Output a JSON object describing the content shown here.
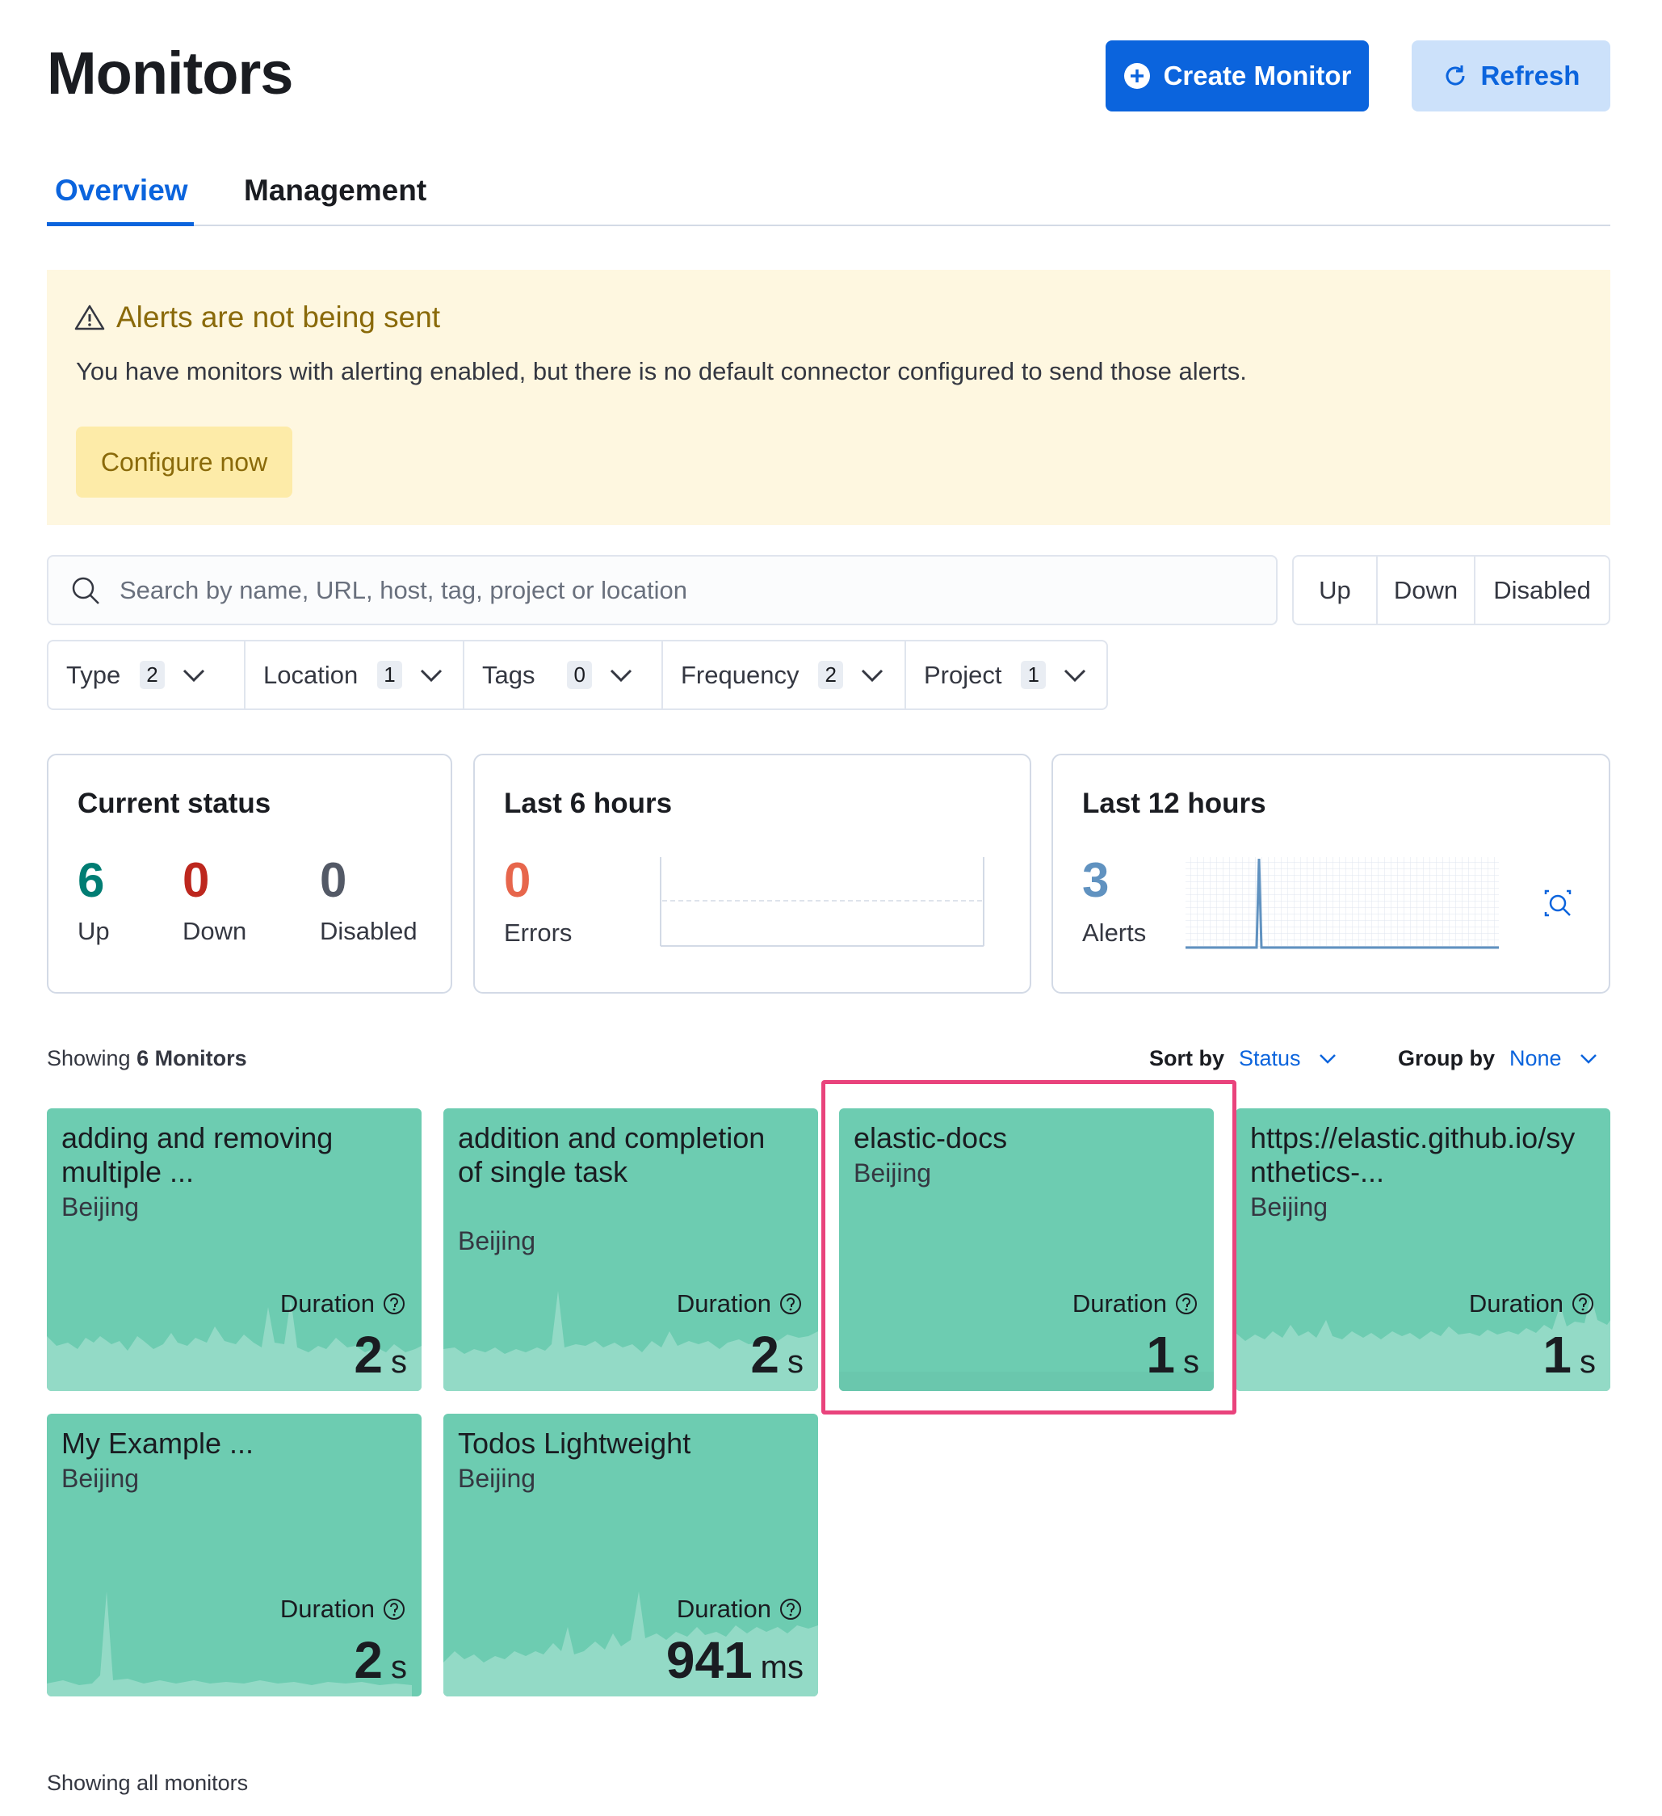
{
  "page_title": "Monitors",
  "header": {
    "create_label": "Create Monitor",
    "refresh_label": "Refresh"
  },
  "tabs": [
    {
      "label": "Overview",
      "active": true
    },
    {
      "label": "Management",
      "active": false
    }
  ],
  "callout": {
    "title": "Alerts are not being sent",
    "text": "You have monitors with alerting enabled, but there is no default connector configured to send those alerts.",
    "action_label": "Configure now"
  },
  "search": {
    "placeholder": "Search by name, URL, host, tag, project or location",
    "value": ""
  },
  "status_filters": [
    "Up",
    "Down",
    "Disabled"
  ],
  "filters": [
    {
      "label": "Type",
      "count": "2"
    },
    {
      "label": "Location",
      "count": "1"
    },
    {
      "label": "Tags",
      "count": "0"
    },
    {
      "label": "Frequency",
      "count": "2"
    },
    {
      "label": "Project",
      "count": "1"
    }
  ],
  "current_status": {
    "title": "Current status",
    "up": "6",
    "up_label": "Up",
    "down": "0",
    "down_label": "Down",
    "disabled": "0",
    "disabled_label": "Disabled"
  },
  "last6": {
    "title": "Last 6 hours",
    "errors": "0",
    "errors_label": "Errors"
  },
  "last12": {
    "title": "Last 12 hours",
    "alerts": "3",
    "alerts_label": "Alerts"
  },
  "list_header": {
    "showing_prefix": "Showing",
    "showing_count": "6 Monitors",
    "sort_label": "Sort by",
    "sort_value": "Status",
    "group_label": "Group by",
    "group_value": "None"
  },
  "monitors": [
    {
      "name": "adding and removing multiple ...",
      "location": "Beijing",
      "duration_label": "Duration",
      "value": "2",
      "unit": "s"
    },
    {
      "name": "addition and completion of single task",
      "location": "Beijing",
      "duration_label": "Duration",
      "value": "2",
      "unit": "s"
    },
    {
      "name": "elastic-docs",
      "location": "Beijing",
      "duration_label": "Duration",
      "value": "1",
      "unit": "s"
    },
    {
      "name": "https://elastic.github.io/synthetics-...",
      "location": "Beijing",
      "duration_label": "Duration",
      "value": "1",
      "unit": "s"
    },
    {
      "name": "My Example ...",
      "location": "Beijing",
      "duration_label": "Duration",
      "value": "2",
      "unit": "s"
    },
    {
      "name": "Todos Lightweight",
      "location": "Beijing",
      "duration_label": "Duration",
      "value": "941",
      "unit": "ms"
    }
  ],
  "footer": "Showing all monitors",
  "colors": {
    "primary": "#0b64dd",
    "card": "#6dccb1",
    "up": "#017d73",
    "down": "#bd271e",
    "errors": "#e7664c",
    "alerts": "#6092c0",
    "highlight": "#e9437c"
  }
}
